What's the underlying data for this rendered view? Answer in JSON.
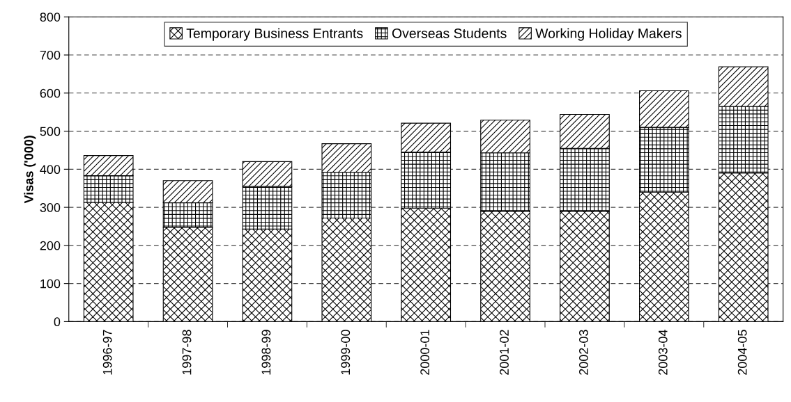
{
  "chart_data": {
    "type": "bar",
    "stacked": true,
    "ylabel": "Visas ('000)",
    "categories": [
      "1996-97",
      "1997-98",
      "1998-99",
      "1999-00",
      "2000-01",
      "2001-02",
      "2002-03",
      "2003-04",
      "2004-05"
    ],
    "series": [
      {
        "name": "Temporary Business Entrants",
        "color": "#000000",
        "values": [
          313,
          248,
          243,
          272,
          298,
          290,
          290,
          340,
          390
        ]
      },
      {
        "name": "Overseas Students",
        "color": "#000000",
        "values": [
          70,
          64,
          112,
          120,
          147,
          153,
          165,
          170,
          175
        ]
      },
      {
        "name": "Working Holiday Makers",
        "color": "#000000",
        "values": [
          53,
          58,
          65,
          75,
          76,
          86,
          89,
          96,
          104
        ]
      }
    ],
    "ylim": [
      0,
      800
    ],
    "yticks": [
      0,
      100,
      200,
      300,
      400,
      500,
      600,
      700,
      800
    ],
    "grid": "y",
    "legend": "top"
  }
}
